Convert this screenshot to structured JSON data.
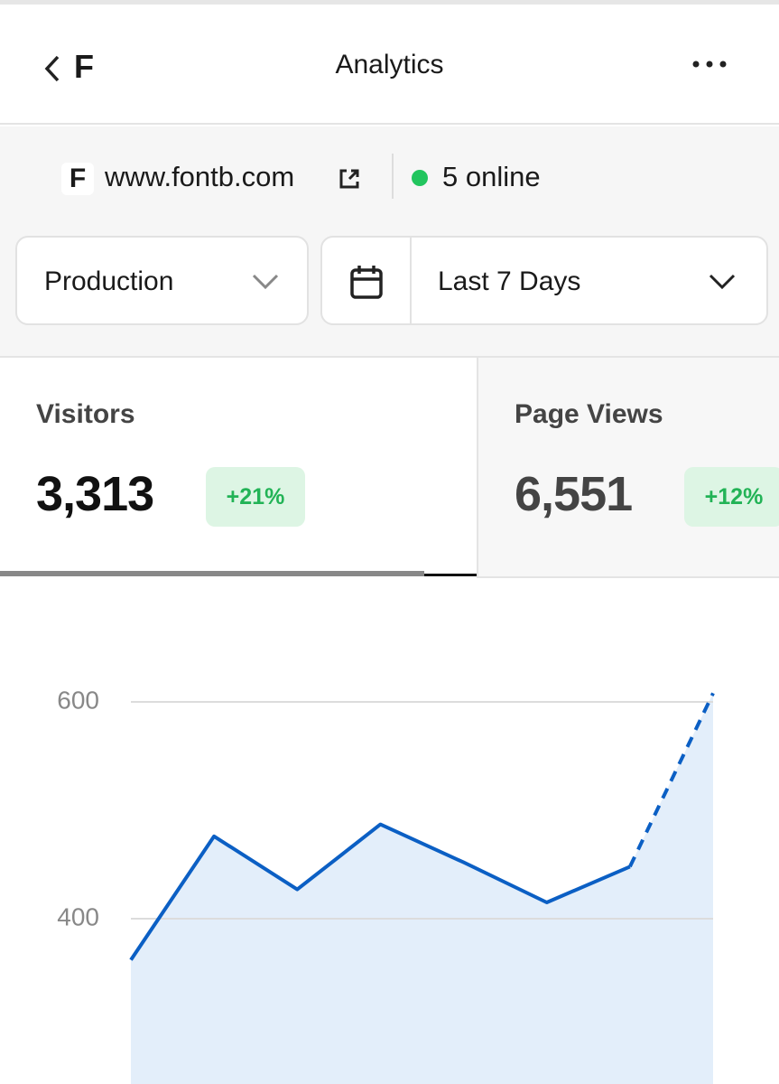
{
  "header": {
    "logo": "F",
    "title": "Analytics"
  },
  "site": {
    "logo": "F",
    "domain": "www.fontb.com",
    "online": "5 online"
  },
  "filters": {
    "environment": "Production",
    "range": "Last 7 Days"
  },
  "stats": [
    {
      "label": "Visitors",
      "value": "3,313",
      "change": "+21%"
    },
    {
      "label": "Page Views",
      "value": "6,551",
      "change": "+12%"
    }
  ],
  "chart_data": {
    "type": "line",
    "series": [
      {
        "color": "#0b5fc4",
        "values": [
          362,
          476,
          427,
          487,
          452,
          415,
          448,
          608
        ]
      }
    ],
    "area_color": "#e3eefa",
    "last_segment_dashed": true,
    "ylim": [
      250,
      650
    ],
    "yticks": [
      400,
      600
    ],
    "grid": true
  }
}
